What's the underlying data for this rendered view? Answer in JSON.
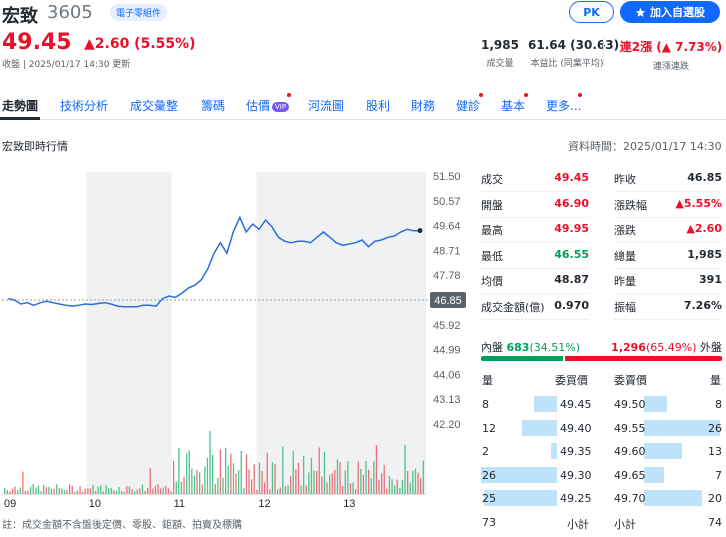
{
  "header": {
    "name": "宏致",
    "code": "3605",
    "tag": "電子零組件",
    "price": "49.45",
    "change": "▲2.60 (5.55%)",
    "close_note": "收盤 | 2025/01/17 14:30 更新",
    "pk_label": "PK",
    "watch_label": "加入自選股"
  },
  "stats": [
    {
      "value": "1,985",
      "label": "成交量"
    },
    {
      "value": "61.64 (30.63)",
      "label": "本益比 (同業平均)"
    },
    {
      "value": "連2漲 (▲ 7.73%)",
      "label": "連漲連跌"
    }
  ],
  "tabs": [
    {
      "label": "走勢圖",
      "active": true
    },
    {
      "label": "技術分析"
    },
    {
      "label": "成交彙整"
    },
    {
      "label": "籌碼"
    },
    {
      "label": "估價",
      "vip": "VIP"
    },
    {
      "label": "河流圖"
    },
    {
      "label": "股利"
    },
    {
      "label": "財務"
    },
    {
      "label": "健診"
    },
    {
      "label": "基本"
    },
    {
      "label": "更多..."
    }
  ],
  "section": {
    "title": "宏致即時行情",
    "data_time": "資料時間：2025/01/17 14:30"
  },
  "chart_data": {
    "type": "line",
    "x_labels": [
      "09",
      "10",
      "11",
      "12",
      "13"
    ],
    "y_ticks": [
      "51.50",
      "50.57",
      "49.64",
      "48.71",
      "47.78",
      "46.85",
      "45.92",
      "44.99",
      "44.06",
      "43.13",
      "42.20"
    ],
    "y_range": [
      42.2,
      51.5
    ],
    "reference_value": 46.85,
    "reference_label": "46.85",
    "series_values": [
      46.9,
      46.85,
      46.7,
      46.75,
      46.65,
      46.75,
      46.8,
      46.75,
      46.7,
      46.65,
      46.62,
      46.65,
      46.7,
      46.68,
      46.72,
      46.75,
      46.7,
      46.62,
      46.6,
      46.6,
      46.6,
      46.65,
      46.65,
      46.62,
      46.9,
      47.0,
      46.95,
      47.1,
      47.3,
      47.4,
      47.6,
      48.0,
      48.6,
      49.0,
      48.6,
      49.4,
      49.95,
      49.4,
      49.7,
      49.5,
      49.85,
      49.6,
      49.2,
      49.05,
      49.0,
      49.05,
      49.05,
      49.0,
      49.2,
      49.4,
      49.2,
      49.0,
      48.9,
      48.95,
      49.0,
      49.1,
      48.85,
      49.05,
      49.1,
      49.2,
      49.25,
      49.4,
      49.5,
      49.45,
      49.45
    ],
    "note": "註：成交金額不含盤後定價、零股、鉅額、拍賣及標購"
  },
  "quote": [
    {
      "label": "成交",
      "value": "49.45",
      "color": "red"
    },
    {
      "label": "開盤",
      "value": "46.90",
      "color": "red"
    },
    {
      "label": "最高",
      "value": "49.95",
      "color": "red"
    },
    {
      "label": "最低",
      "value": "46.55",
      "color": "green"
    },
    {
      "label": "均價",
      "value": "48.87",
      "color": "dark"
    },
    {
      "label": "成交金額(億)",
      "value": "0.970",
      "color": "dark"
    }
  ],
  "quote2": [
    {
      "label": "昨收",
      "value": "46.85",
      "color": "dark"
    },
    {
      "label": "漲跌幅",
      "value": "▲5.55%",
      "color": "red"
    },
    {
      "label": "漲跌",
      "value": "▲2.60",
      "color": "red"
    },
    {
      "label": "總量",
      "value": "1,985",
      "color": "dark"
    },
    {
      "label": "昨量",
      "value": "391",
      "color": "dark"
    },
    {
      "label": "振幅",
      "value": "7.26%",
      "color": "dark"
    }
  ],
  "inout": {
    "in_label": "內盤",
    "in_value": "683",
    "in_pct": "(34.51%)",
    "in_fraction": 0.3451,
    "out_value": "1,296",
    "out_pct": "(65.49%)",
    "out_label": "外盤"
  },
  "orderbook": {
    "bid_head": [
      "量",
      "委買價"
    ],
    "ask_head": [
      "委賣價",
      "量"
    ],
    "bids": [
      {
        "qty": "8",
        "price": "49.45",
        "size": 8
      },
      {
        "qty": "12",
        "price": "49.40",
        "size": 12
      },
      {
        "qty": "2",
        "price": "49.35",
        "size": 2
      },
      {
        "qty": "26",
        "price": "49.30",
        "size": 26
      },
      {
        "qty": "25",
        "price": "49.25",
        "size": 25
      }
    ],
    "asks": [
      {
        "price": "49.50",
        "qty": "8",
        "size": 8
      },
      {
        "price": "49.55",
        "qty": "26",
        "size": 26
      },
      {
        "price": "49.60",
        "qty": "13",
        "size": 13
      },
      {
        "price": "49.65",
        "qty": "7",
        "size": 7
      },
      {
        "price": "49.70",
        "qty": "20",
        "size": 20
      }
    ],
    "bid_total": "73",
    "bid_total_label": "小計",
    "ask_total_label": "小計",
    "ask_total": "74"
  }
}
